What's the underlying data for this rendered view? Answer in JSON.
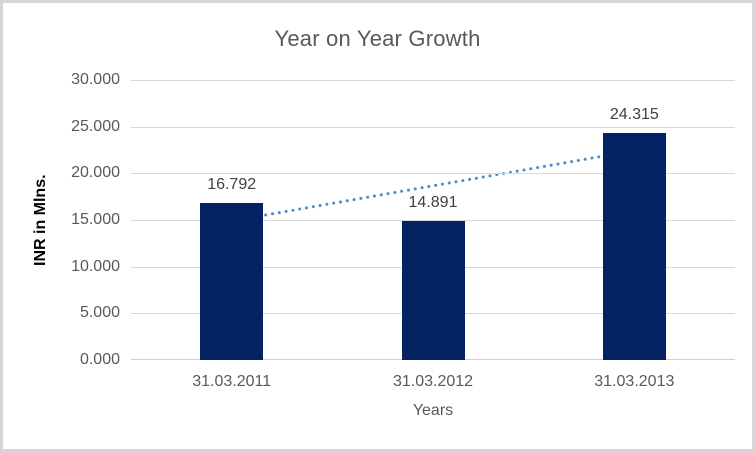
{
  "chart_data": {
    "type": "bar",
    "title": "Year on Year Growth",
    "xlabel": "Years",
    "ylabel": "INR in Mlns.",
    "categories": [
      "31.03.2011",
      "31.03.2012",
      "31.03.2013"
    ],
    "series": [
      {
        "name": "INR in Mlns.",
        "values": [
          16.792,
          14.891,
          24.315
        ],
        "data_labels": [
          "16.792",
          "14.891",
          "24.315"
        ]
      }
    ],
    "ylim": [
      0,
      30
    ],
    "ytick_step": 5,
    "ytick_labels": [
      "0.000",
      "5.000",
      "10.000",
      "15.000",
      "20.000",
      "25.000",
      "30.000"
    ],
    "grid": true,
    "legend": "none",
    "colors": {
      "bar_fill": "#052263",
      "trendline": "#4a8bc9",
      "gridline": "#d9d9d9",
      "title_text": "#595959",
      "tick_text": "#595959",
      "data_label_text": "#404040",
      "y_axis_title_text": "#000000"
    },
    "trendline": {
      "type": "linear",
      "style": "dotted",
      "color": "#4a8bc9"
    }
  }
}
